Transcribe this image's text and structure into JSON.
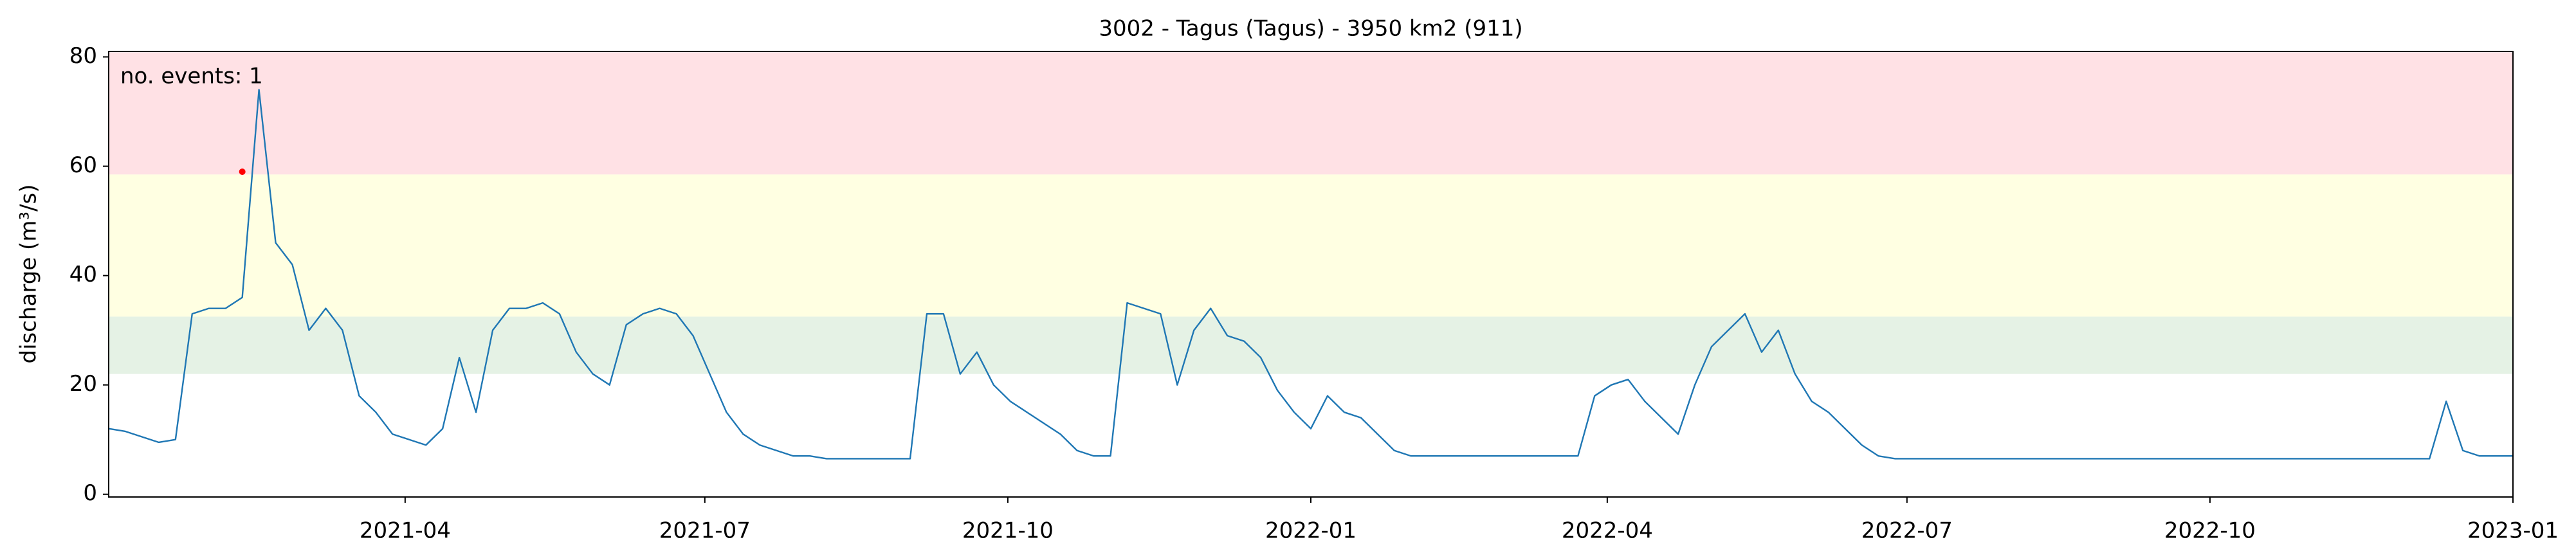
{
  "chart_data": {
    "type": "line",
    "title": "3002 - Tagus (Tagus) - 3950 km2 (911)",
    "ylabel": "discharge (m³/s)",
    "annotation": "no. events: 1",
    "annotation_color": "#ff0000",
    "color": "#1f77b4",
    "xlim": [
      "2021-01",
      "2023-01"
    ],
    "xticks": [
      "2021-04",
      "2021-07",
      "2021-10",
      "2022-01",
      "2022-04",
      "2022-07",
      "2022-10",
      "2023-01"
    ],
    "ylim": [
      -0.5,
      81
    ],
    "yticks": [
      0,
      20,
      40,
      60,
      80
    ],
    "bands": [
      {
        "from": 22,
        "to": 32.5,
        "color": "#e5f2e5"
      },
      {
        "from": 32.5,
        "to": 58.5,
        "color": "#ffffe2"
      },
      {
        "from": 58.5,
        "to": 81,
        "color": "#ffe1e5"
      }
    ],
    "values": [
      12,
      11.5,
      10.5,
      9.5,
      10,
      33,
      34,
      34,
      36,
      74,
      46,
      42,
      30,
      34,
      30,
      18,
      15,
      11,
      10,
      9,
      12,
      25,
      15,
      30,
      34,
      34,
      35,
      33,
      26,
      22,
      20,
      31,
      33,
      34,
      33,
      29,
      22,
      15,
      11,
      9,
      8,
      7,
      7,
      6.5,
      6.5,
      6.5,
      6.5,
      6.5,
      6.5,
      33,
      33,
      22,
      26,
      20,
      17,
      15,
      13,
      11,
      8,
      7,
      7,
      35,
      34,
      33,
      20,
      30,
      34,
      29,
      28,
      25,
      19,
      15,
      12,
      18,
      15,
      14,
      11,
      8,
      7,
      7,
      7,
      7,
      7,
      7,
      7,
      7,
      7,
      7,
      7,
      18,
      20,
      21,
      17,
      14,
      11,
      20,
      27,
      30,
      33,
      26,
      30,
      22,
      17,
      15,
      12,
      9,
      7,
      6.5,
      6.5,
      6.5,
      6.5,
      6.5,
      6.5,
      6.5,
      6.5,
      6.5,
      6.5,
      6.5,
      6.5,
      6.5,
      6.5,
      6.5,
      6.5,
      6.5,
      6.5,
      6.5,
      6.5,
      6.5,
      6.5,
      6.5,
      6.5,
      6.5,
      6.5,
      6.5,
      6.5,
      6.5,
      6.5,
      6.5,
      6.5,
      6.5,
      17,
      8,
      7,
      7,
      7
    ],
    "events": {
      "color": "#ff0000",
      "values": [
        null,
        null,
        null,
        null,
        null,
        null,
        null,
        null,
        59,
        null,
        null,
        null,
        null,
        null,
        null,
        null,
        null,
        null,
        null,
        null,
        null,
        null,
        null,
        null,
        null,
        null,
        null,
        null,
        null,
        null,
        null,
        null,
        null,
        null,
        null,
        null,
        null,
        null,
        null,
        null,
        null,
        null,
        null,
        null,
        null,
        null,
        null,
        null,
        null,
        null,
        null,
        null,
        null,
        null,
        null,
        null,
        null,
        null,
        null,
        null,
        null,
        null,
        null,
        null,
        null,
        null,
        null,
        null,
        null,
        null,
        null,
        null,
        null,
        null,
        null,
        null,
        null,
        null,
        null,
        null,
        null,
        null,
        null,
        null,
        null,
        null,
        null,
        null,
        null,
        null,
        null,
        null,
        null,
        null,
        null,
        null,
        null,
        null,
        null,
        null,
        null,
        null,
        null,
        null,
        null,
        null,
        null,
        null,
        null,
        null,
        null,
        null,
        null,
        null,
        null,
        null,
        null,
        null,
        null,
        null,
        null,
        null,
        null,
        null,
        null,
        null,
        null,
        null,
        null,
        null,
        null,
        null,
        null,
        null,
        null,
        null,
        null,
        null,
        null,
        null,
        null,
        null,
        null,
        null,
        null,
        null,
        null
      ]
    }
  }
}
